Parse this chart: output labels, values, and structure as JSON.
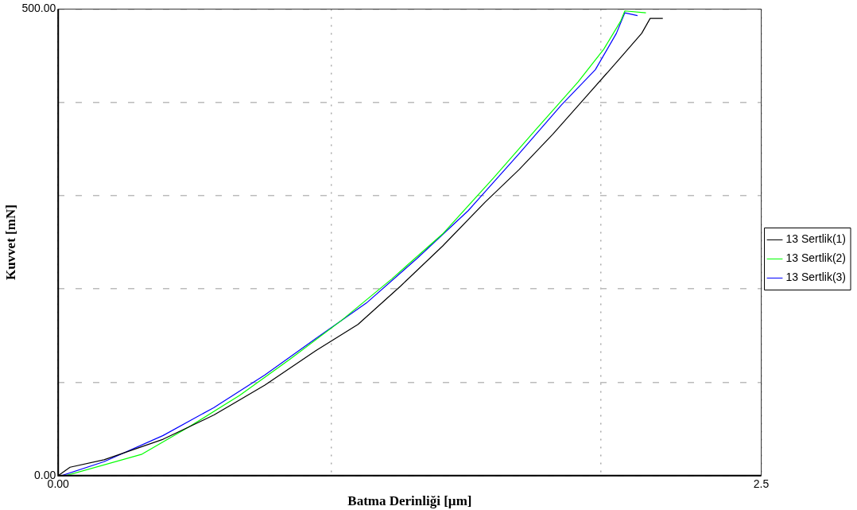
{
  "chart_data": {
    "type": "line",
    "xlabel": "Batma Derinliği [µm]",
    "ylabel": "Kuvvet [mN]",
    "xlim": [
      0,
      2.5
    ],
    "xticks": [
      {
        "value": 0,
        "label": "0.00"
      },
      {
        "value": 0.97,
        "label": null
      },
      {
        "value": 1.93,
        "label": null
      },
      {
        "value": 2.5,
        "label": "2.5"
      }
    ],
    "ylim": [
      0,
      500
    ],
    "yticks": [
      {
        "value": 0,
        "label": "0.00"
      },
      {
        "value": 100,
        "label": null
      },
      {
        "value": 200,
        "label": null
      },
      {
        "value": 300,
        "label": null
      },
      {
        "value": 400,
        "label": null
      },
      {
        "value": 500,
        "label": "500.00"
      }
    ],
    "grid": true,
    "legend": "right",
    "marker": "none",
    "line_style": "solid",
    "series": [
      {
        "name": "13 Sertlik(1)",
        "color": "#000000",
        "x": [
          0,
          0.042,
          0.163,
          0.373,
          0.554,
          0.735,
          0.916,
          1.066,
          1.217,
          1.367,
          1.518,
          1.639,
          1.759,
          1.88,
          2.0,
          2.075,
          2.105,
          2.15
        ],
        "values": [
          0,
          9,
          17,
          39,
          65,
          97,
          134,
          162,
          203,
          246,
          293,
          328,
          366,
          407,
          448,
          474,
          490,
          490
        ]
      },
      {
        "name": "13 Sertlik(2)",
        "color": "#00ff00",
        "x": [
          0.027,
          0.298,
          0.464,
          0.645,
          0.825,
          1.006,
          1.187,
          1.367,
          1.548,
          1.699,
          1.849,
          1.94,
          2.0,
          2.015,
          2.09
        ],
        "values": [
          0,
          23,
          52,
          86,
          125,
          166,
          211,
          259,
          319,
          371,
          422,
          457,
          487,
          498,
          496
        ]
      },
      {
        "name": "13 Sertlik(3)",
        "color": "#0000ff",
        "x": [
          0.012,
          0.163,
          0.373,
          0.554,
          0.735,
          0.916,
          1.096,
          1.277,
          1.458,
          1.639,
          1.789,
          1.91,
          1.985,
          2.015,
          2.06
        ],
        "values": [
          0,
          15,
          43,
          73,
          108,
          147,
          185,
          233,
          284,
          345,
          397,
          435,
          474,
          496,
          493
        ]
      }
    ]
  }
}
